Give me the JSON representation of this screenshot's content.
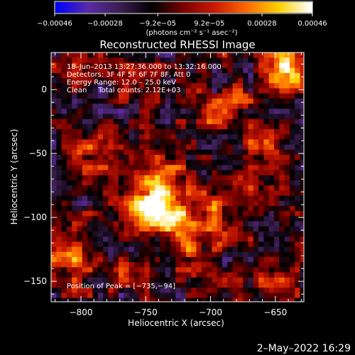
{
  "chart_data": {
    "type": "heatmap",
    "title": "Reconstructed RHESSI Image",
    "xlabel": "Heliocentric X (arcsec)",
    "ylabel": "Heliocentric Y (arcsec)",
    "xlim": [
      -823,
      -628
    ],
    "ylim": [
      -166,
      29
    ],
    "x_ticks": [
      -800,
      -750,
      -700,
      -650
    ],
    "x_tick_labels": [
      "−800",
      "−750",
      "−700",
      "−650"
    ],
    "y_ticks": [
      0,
      -50,
      -100,
      -150
    ],
    "y_tick_labels": [
      "0",
      "−50",
      "−100",
      "−150"
    ],
    "colorbar": {
      "range": [
        -0.00046,
        0.00046
      ],
      "ticks": [
        -0.00046,
        -0.00028,
        -9.2e-05,
        9.2e-05,
        0.00028,
        0.00046
      ],
      "tick_labels": [
        "−0.00046",
        "−0.00028",
        "−9.2e−05",
        "9.2e−05",
        "0.00028",
        "0.00046"
      ],
      "unit_label": "(photons cm⁻² s⁻¹ asec⁻²)",
      "colormap": [
        "#0000ff",
        "#5a2aa8",
        "#3c1e50",
        "#000000",
        "#7a0000",
        "#cc1a00",
        "#ff6a00",
        "#ffd100",
        "#ffffff"
      ]
    },
    "annotations": {
      "time_range": "18–Jun–2013 13:27:36.000 to 13:32:16.000",
      "detectors": "Detectors: 3F 4F 5F 6F 7F 8F, Att 0",
      "energy": "Energy Range: 12.0 – 25.0 keV",
      "clean": "Clean     Total counts: 2.12E+03",
      "peak": "Position of Peak = [−735,−94]"
    },
    "peak": [
      -735,
      -94
    ],
    "hotspots": [
      {
        "x": -735,
        "y": -94,
        "s": 14,
        "a": 1.0
      },
      {
        "x": -750,
        "y": -90,
        "s": 10,
        "a": 0.55
      },
      {
        "x": -740,
        "y": -62,
        "s": 12,
        "a": 0.55
      },
      {
        "x": -770,
        "y": -62,
        "s": 10,
        "a": 0.45
      },
      {
        "x": -700,
        "y": -92,
        "s": 11,
        "a": 0.5
      },
      {
        "x": -692,
        "y": -115,
        "s": 9,
        "a": 0.45
      },
      {
        "x": -640,
        "y": 18,
        "s": 12,
        "a": 0.85
      },
      {
        "x": -680,
        "y": -8,
        "s": 9,
        "a": 0.45
      },
      {
        "x": -660,
        "y": -42,
        "s": 10,
        "a": 0.5
      },
      {
        "x": -665,
        "y": -74,
        "s": 8,
        "a": 0.4
      },
      {
        "x": -800,
        "y": -50,
        "s": 9,
        "a": 0.45
      },
      {
        "x": -808,
        "y": -132,
        "s": 13,
        "a": 0.55
      },
      {
        "x": -720,
        "y": -128,
        "s": 10,
        "a": 0.45
      },
      {
        "x": -762,
        "y": -142,
        "s": 8,
        "a": 0.35
      },
      {
        "x": -700,
        "y": -18,
        "s": 8,
        "a": 0.35
      },
      {
        "x": -812,
        "y": 18,
        "s": 9,
        "a": 0.35
      },
      {
        "x": -760,
        "y": 0,
        "s": 8,
        "a": 0.3
      },
      {
        "x": -650,
        "y": -150,
        "s": 9,
        "a": 0.35
      },
      {
        "x": -690,
        "y": -150,
        "s": 7,
        "a": 0.3
      }
    ]
  },
  "footer": {
    "date_stamp": "2–May–2022 16:29"
  }
}
